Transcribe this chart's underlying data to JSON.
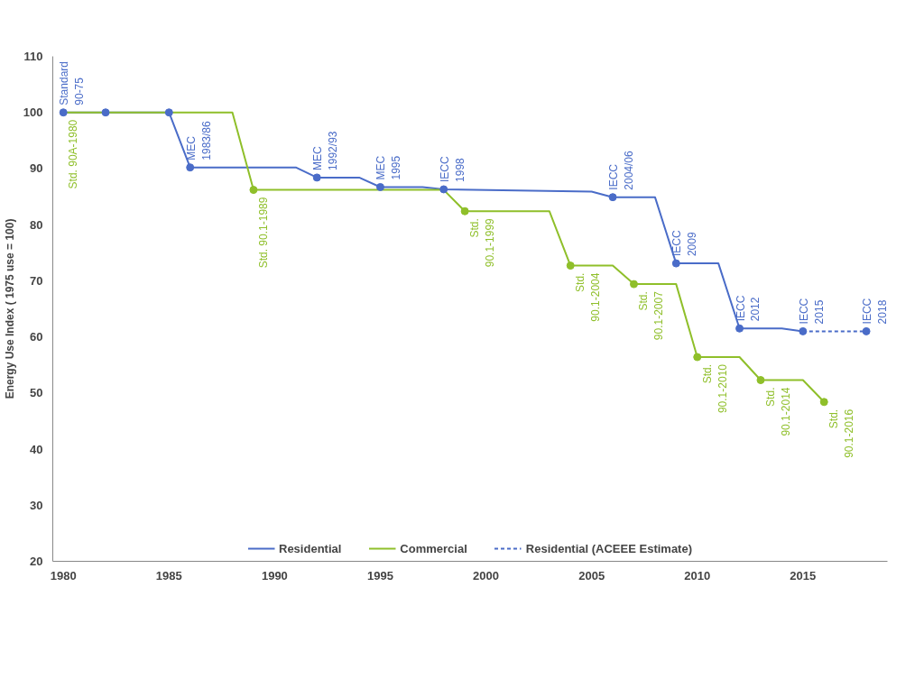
{
  "chart_data": {
    "type": "line",
    "ylabel": "Energy Use Index ( 1975 use = 100)",
    "xlim": [
      1979.5,
      2019
    ],
    "xticks": [
      1980,
      1985,
      1990,
      1995,
      2000,
      2005,
      2010,
      2015
    ],
    "ylim": [
      20,
      110
    ],
    "yticks": [
      20,
      30,
      40,
      50,
      60,
      70,
      80,
      90,
      100,
      110
    ],
    "grid": false,
    "legend": "bottom",
    "marker": "none",
    "series": [
      {
        "name": "Residential",
        "color": "#4a6cc8",
        "line_style": "solid",
        "x": [
          1980,
          1982,
          1985,
          1986,
          1991,
          1992,
          1994,
          1995,
          1997,
          1998,
          2005,
          2006,
          2008,
          2009,
          2011,
          2012,
          2014,
          2015
        ],
        "values": [
          100,
          100,
          100,
          90.2,
          90.2,
          88.4,
          88.4,
          86.7,
          86.7,
          86.3,
          85.9,
          84.9,
          84.9,
          73.1,
          73.1,
          61.5,
          61.5,
          61.0
        ]
      },
      {
        "name": "Commercial",
        "color": "#8fbf2a",
        "line_style": "solid",
        "x": [
          1980,
          1988,
          1989,
          1998,
          1999,
          2003,
          2004,
          2006,
          2007,
          2009,
          2010,
          2012,
          2013,
          2015,
          2016
        ],
        "values": [
          100,
          100,
          86.2,
          86.2,
          82.4,
          82.4,
          72.7,
          72.7,
          69.4,
          69.4,
          56.4,
          56.4,
          52.3,
          52.3,
          48.4
        ]
      },
      {
        "name": "Residential (ACEEE Estimate)",
        "color": "#4a6cc8",
        "line_style": "dashed",
        "x": [
          2015,
          2018
        ],
        "values": [
          61.0,
          61.0
        ]
      },
      {
        "type": "scatter",
        "marker": "circle",
        "color": "#8fbf2a",
        "x": [
          1989,
          1999,
          2004,
          2007,
          2010,
          2013,
          2016
        ],
        "values": [
          86.2,
          82.4,
          72.7,
          69.4,
          56.4,
          52.3,
          48.4
        ]
      },
      {
        "type": "scatter",
        "marker": "circle",
        "color": "#4a6cc8",
        "x": [
          1980,
          1982,
          1985,
          1986,
          1992,
          1995,
          1998,
          2006,
          2009,
          2012,
          2015,
          2018
        ],
        "values": [
          100,
          100,
          100,
          90.2,
          88.4,
          86.7,
          86.3,
          84.9,
          73.1,
          61.5,
          61.0,
          61.0
        ]
      }
    ],
    "annotations": [
      {
        "text": "Standard\n90-75",
        "x": 1980,
        "y": 100
      },
      {
        "text": "MEC\n1983/86",
        "x": 1986,
        "y": 90.2
      },
      {
        "text": "MEC\n1992/93",
        "x": 1992,
        "y": 88.4
      },
      {
        "text": "MEC\n1995",
        "x": 1995,
        "y": 86.7
      },
      {
        "text": "IECC\n1998",
        "x": 1998,
        "y": 86.3
      },
      {
        "text": "IECC\n2004/06",
        "x": 2006,
        "y": 84.9
      },
      {
        "text": "IECC\n2009",
        "x": 2009,
        "y": 73.1
      },
      {
        "text": "IECC\n2012",
        "x": 2012,
        "y": 61.5
      },
      {
        "text": "IECC\n2015",
        "x": 2015,
        "y": 61.0
      },
      {
        "text": "IECC\n2018",
        "x": 2018,
        "y": 61.0
      },
      {
        "text": "Std. 90A-1980",
        "x": 1980,
        "y": 100
      },
      {
        "text": "Std. 90.1-1989",
        "x": 1989,
        "y": 86.2
      },
      {
        "text": "Std.\n90.1-1999",
        "x": 1999,
        "y": 82.4
      },
      {
        "text": "Std.\n90.1-2004",
        "x": 2004,
        "y": 72.7
      },
      {
        "text": "Std.\n90.1-2007",
        "x": 2007,
        "y": 69.4
      },
      {
        "text": "Std.\n90.1-2010",
        "x": 2010,
        "y": 56.4
      },
      {
        "text": "Std.\n90.1-2014",
        "x": 2013,
        "y": 52.3
      },
      {
        "text": "Std.\n90.1-2016",
        "x": 2016,
        "y": 48.4
      }
    ]
  }
}
